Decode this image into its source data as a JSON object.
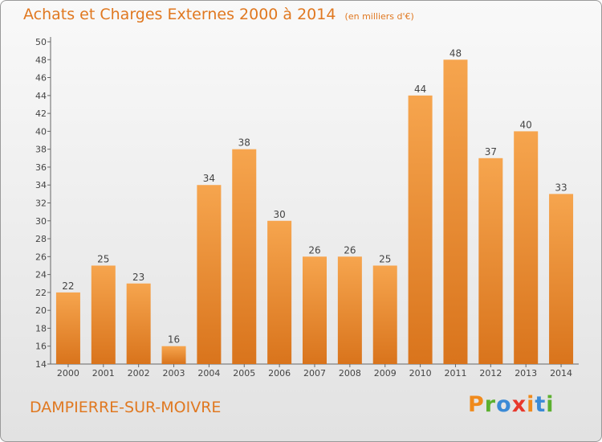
{
  "title": "Achats et Charges Externes 2000 à 2014",
  "unit": "(en milliers d'€)",
  "commune": "DAMPIERRE-SUR-MOIVRE",
  "brand": "Proxiti",
  "colors": {
    "bar_light": "#f6a54e",
    "bar_dark": "#d9741c",
    "title": "#e07820",
    "brand_letters": [
      "#f08a1c",
      "#5cb030",
      "#3b8ad6",
      "#e8382c",
      "#f08a1c",
      "#3b8ad6",
      "#5cb030"
    ]
  },
  "chart_data": {
    "type": "bar",
    "title": "Achats et Charges Externes 2000 à 2014",
    "xlabel": "",
    "ylabel": "",
    "categories": [
      "2000",
      "2001",
      "2002",
      "2003",
      "2004",
      "2005",
      "2006",
      "2007",
      "2008",
      "2009",
      "2010",
      "2011",
      "2012",
      "2013",
      "2014"
    ],
    "values": [
      22,
      25,
      23,
      16,
      34,
      38,
      30,
      26,
      26,
      25,
      44,
      48,
      37,
      40,
      33
    ],
    "ylim": [
      14,
      50
    ],
    "yticks": [
      14,
      16,
      18,
      20,
      22,
      24,
      26,
      28,
      30,
      32,
      34,
      36,
      38,
      40,
      42,
      44,
      46,
      48,
      50
    ],
    "grid": false,
    "data_labels": true
  }
}
